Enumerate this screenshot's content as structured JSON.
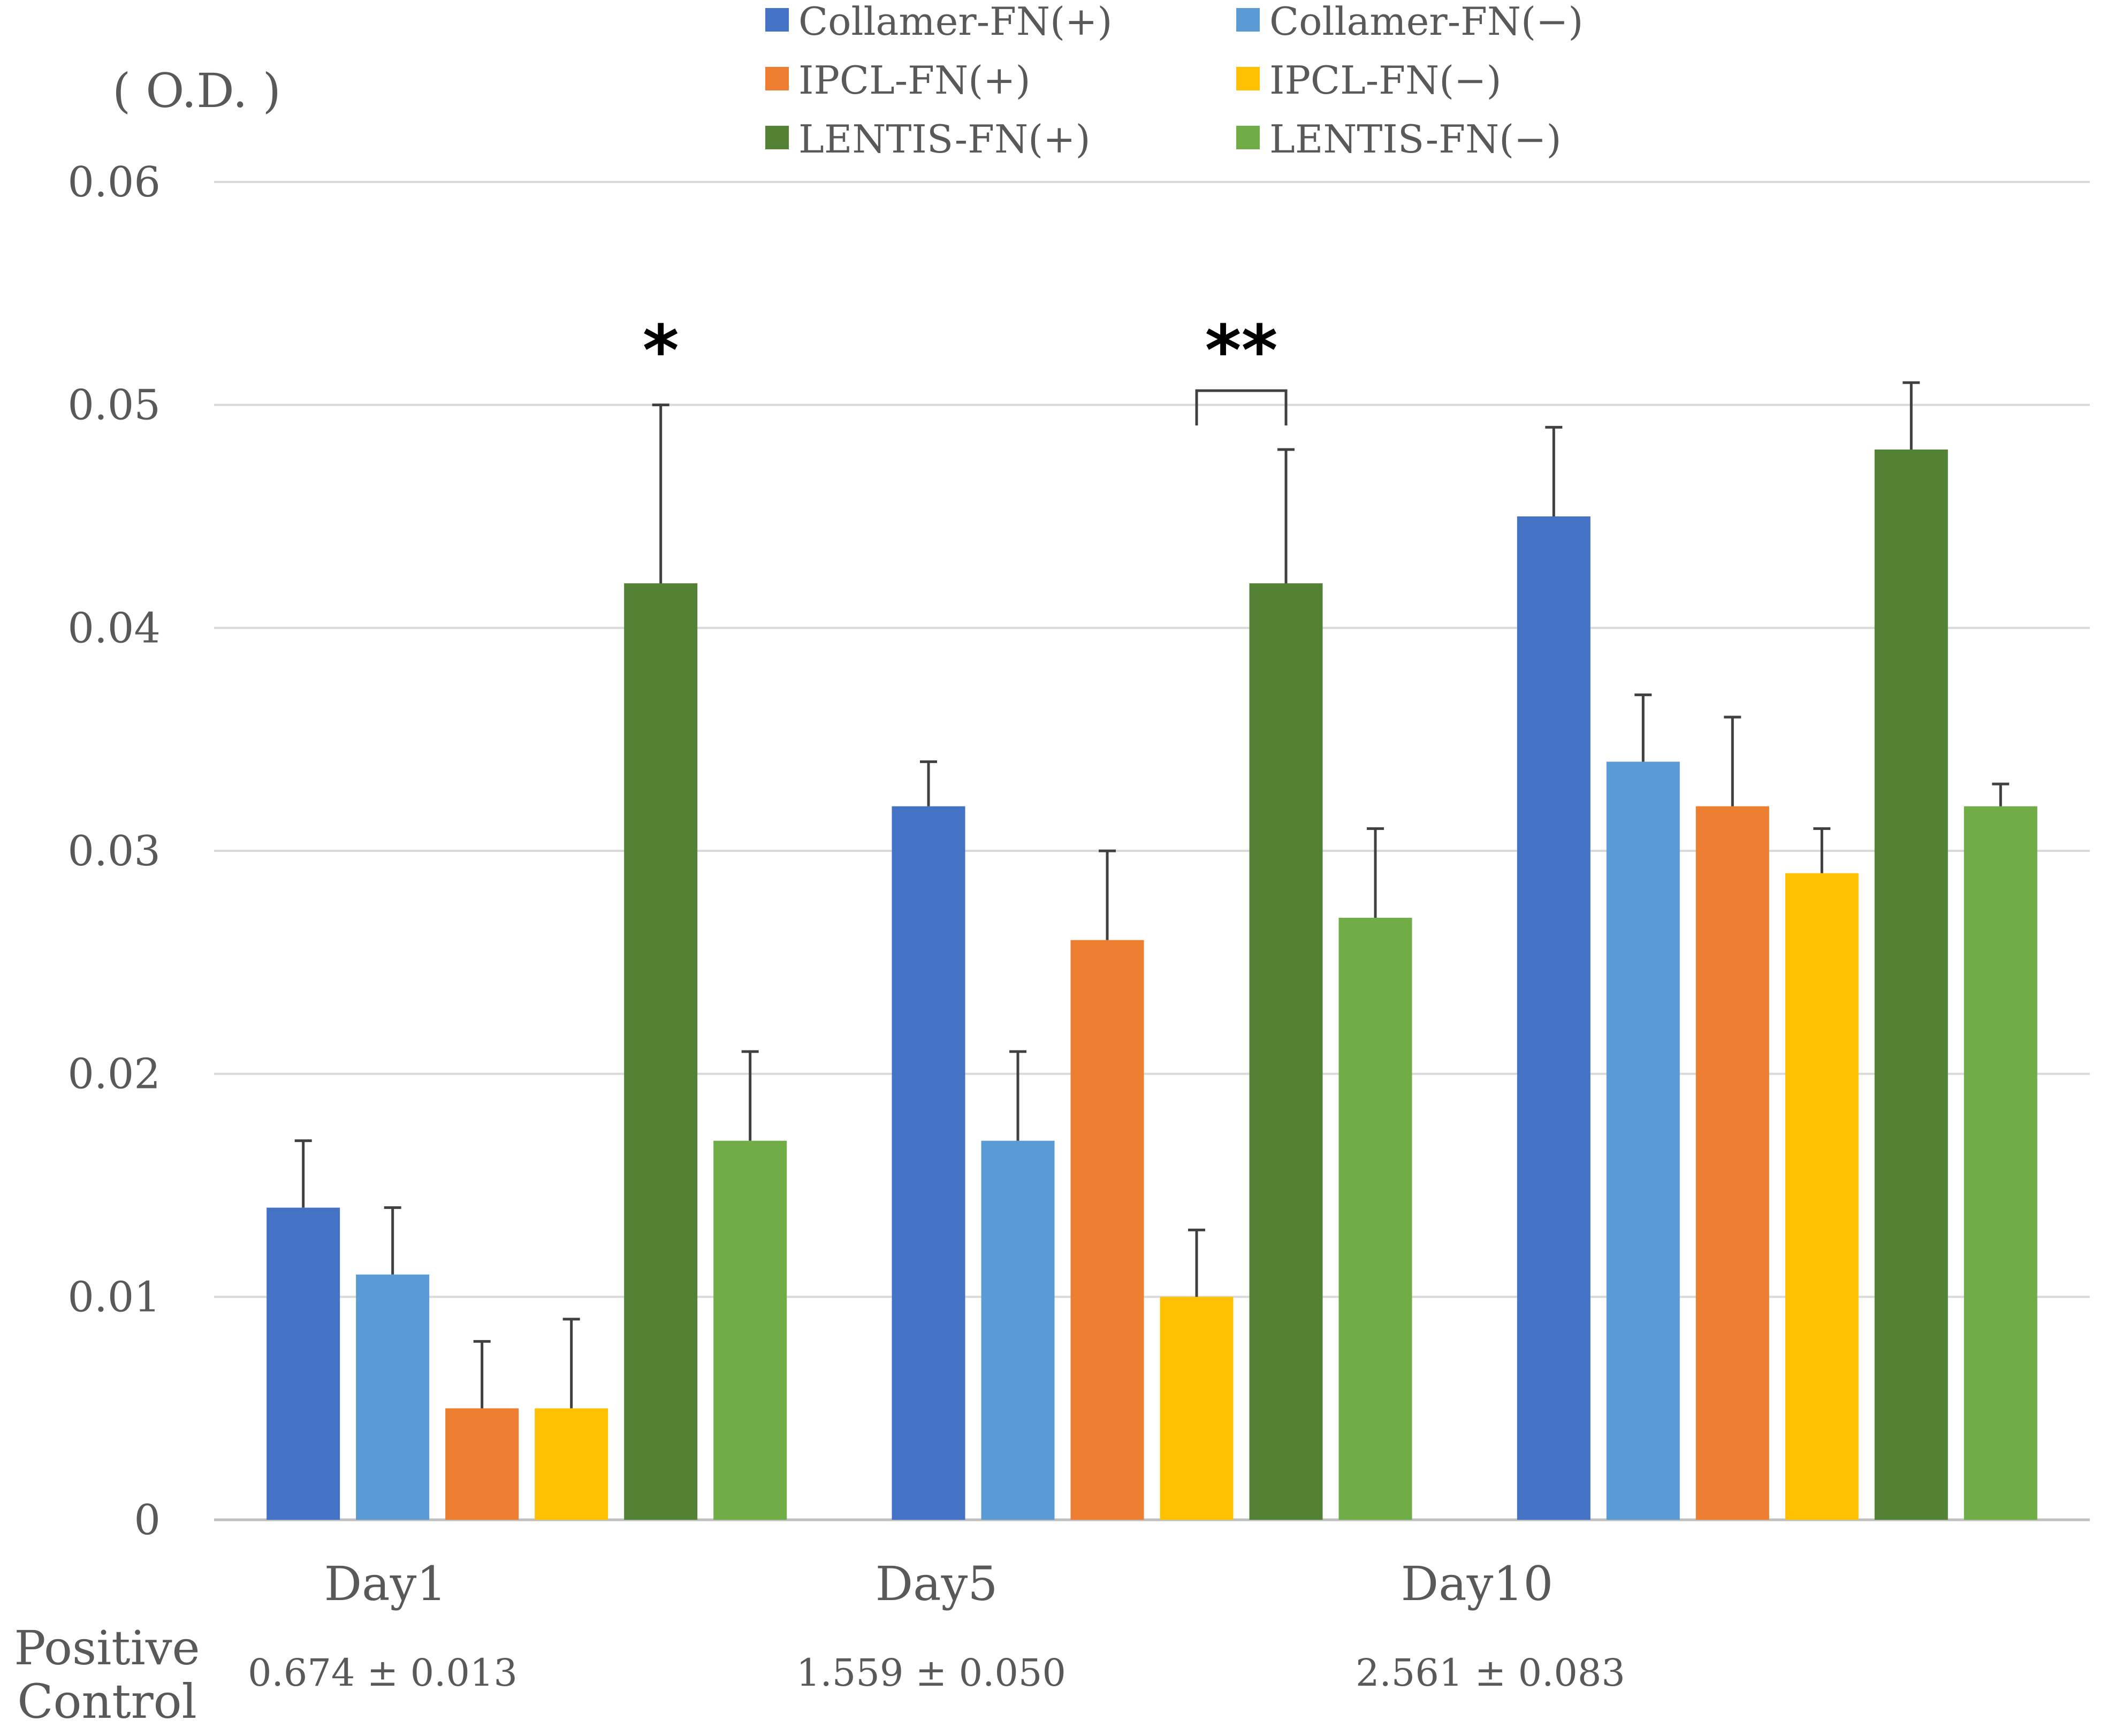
{
  "chart_data": {
    "type": "bar",
    "title": "",
    "ylabel": "( O.D. )",
    "xlabel": "",
    "ylim": [
      0,
      0.06
    ],
    "yticks": [
      "0",
      "0.01",
      "0.02",
      "0.03",
      "0.04",
      "0.05",
      "0.06"
    ],
    "grid": true,
    "legend_position": "top-right",
    "categories": [
      "Day1",
      "Day5",
      "Day10"
    ],
    "series": [
      {
        "name": "Collamer-FN(+)",
        "color": "#4472C4",
        "values": [
          0.014,
          0.032,
          0.045
        ],
        "errors": [
          0.003,
          0.002,
          0.004
        ]
      },
      {
        "name": "Collamer-FN(−)",
        "color": "#5B9BD5",
        "values": [
          0.011,
          0.017,
          0.034
        ],
        "errors": [
          0.003,
          0.004,
          0.003
        ]
      },
      {
        "name": "IPCL-FN(+)",
        "color": "#ED7D31",
        "values": [
          0.005,
          0.026,
          0.032
        ],
        "errors": [
          0.003,
          0.004,
          0.004
        ]
      },
      {
        "name": "IPCL-FN(−)",
        "color": "#FFC000",
        "values": [
          0.005,
          0.01,
          0.029
        ],
        "errors": [
          0.004,
          0.003,
          0.002
        ]
      },
      {
        "name": "LENTIS-FN(+)",
        "color": "#548235",
        "values": [
          0.042,
          0.042,
          0.048
        ],
        "errors": [
          0.008,
          0.006,
          0.003
        ]
      },
      {
        "name": "LENTIS-FN(−)",
        "color": "#70AD47",
        "values": [
          0.017,
          0.027,
          0.032
        ],
        "errors": [
          0.004,
          0.004,
          0.001
        ]
      }
    ],
    "annotations": [
      {
        "text": "*",
        "category": "Day1",
        "series": "LENTIS-FN(+)"
      },
      {
        "text": "**",
        "category": "Day5",
        "series_from": "IPCL-FN(−)",
        "series_to": "LENTIS-FN(+)",
        "bracket": true
      }
    ],
    "positive_control": {
      "label_line1": "Positive",
      "label_line2": "Control",
      "values": [
        "0.674 ± 0.013",
        "1.559 ± 0.050",
        "2.561 ± 0.083"
      ]
    }
  }
}
